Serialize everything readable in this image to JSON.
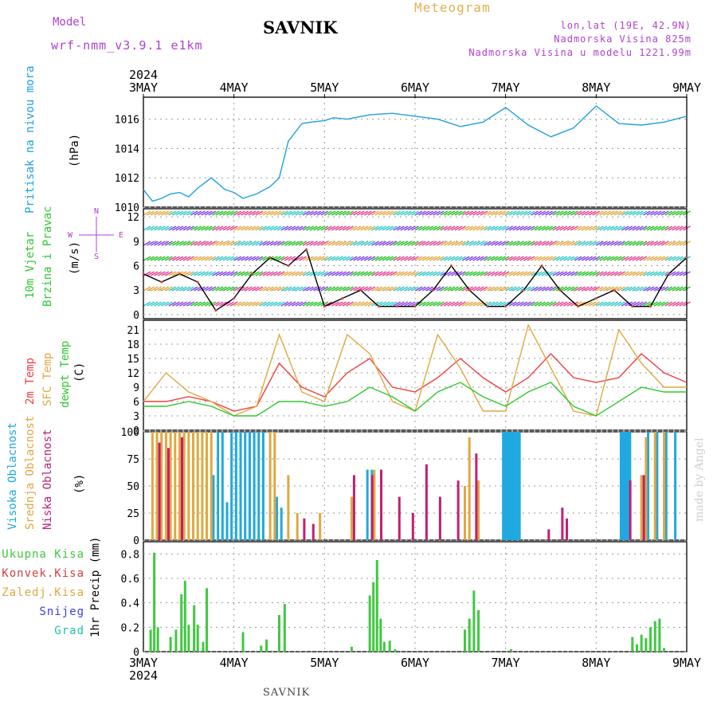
{
  "header": {
    "model_label": "Model",
    "model_value": "wrf-nmm_v3.9.1  e1km",
    "station": "SAVNIK",
    "product": "Meteogram",
    "location_lines": [
      "lon,lat (19E, 42.9N)",
      "Nadmorska Visina 825m",
      "Nadmorska Visina u modelu 1221.99m"
    ],
    "signature": "made by Angel",
    "footer": "SAVNIK"
  },
  "colors": {
    "pressure": "#1ea0e0",
    "temp2m": "#f04040",
    "sfc_temp": "#e0a840",
    "dewpoint": "#30c830",
    "high_cloud": "#20a8e0",
    "mid_cloud": "#e0a840",
    "low_cloud": "#c02070",
    "total_precip": "#40c840",
    "convective": "#d04040",
    "snow": "#4040e0",
    "hail": "#20c0b0",
    "label_purple": "#b040d0"
  },
  "time_axis": {
    "year_label": "2024",
    "days": [
      "3MAY",
      "4MAY",
      "5MAY",
      "6MAY",
      "7MAY",
      "8MAY",
      "9MAY"
    ]
  },
  "chart_data": [
    {
      "type": "line",
      "id": "pressure",
      "ylabel_lines": [
        "Pritisak na nivou mora",
        "(hPa)"
      ],
      "ylim": [
        1010,
        1017.5
      ],
      "yticks": [
        1010,
        1012,
        1014,
        1016
      ],
      "grid": true,
      "series": [
        {
          "name": "Pritisak na nivou mora",
          "x_days": [
            0,
            0.1,
            0.2,
            0.3,
            0.4,
            0.5,
            0.6,
            0.75,
            0.9,
            1.0,
            1.1,
            1.25,
            1.4,
            1.5,
            1.6,
            1.75,
            1.85,
            2.0,
            2.1,
            2.25,
            2.5,
            2.75,
            3.0,
            3.25,
            3.5,
            3.75,
            4.0,
            4.25,
            4.5,
            4.75,
            5.0,
            5.25,
            5.5,
            5.75,
            6.0
          ],
          "values": [
            1011.2,
            1010.4,
            1010.6,
            1010.9,
            1011.0,
            1010.7,
            1011.3,
            1012.0,
            1011.2,
            1011.0,
            1010.6,
            1010.9,
            1011.4,
            1012.0,
            1014.5,
            1015.7,
            1015.8,
            1015.9,
            1016.1,
            1016.0,
            1016.3,
            1016.4,
            1016.2,
            1016.0,
            1015.5,
            1015.8,
            1016.8,
            1015.6,
            1014.8,
            1015.4,
            1016.9,
            1015.7,
            1015.6,
            1015.8,
            1016.2
          ]
        }
      ]
    },
    {
      "type": "line",
      "id": "wind",
      "ylabel_lines": [
        "10m Vjetar",
        "Brzina i Pravac",
        "(m/s)"
      ],
      "compass": [
        "N",
        "E",
        "S",
        "W"
      ],
      "ylim": [
        -0.5,
        13
      ],
      "yticks": [
        0,
        3,
        6,
        9,
        12
      ],
      "grid": true,
      "series": [
        {
          "name": "10m Vjetar",
          "x_days": [
            0,
            0.2,
            0.4,
            0.6,
            0.8,
            1.0,
            1.2,
            1.4,
            1.6,
            1.8,
            2.0,
            2.2,
            2.4,
            2.6,
            2.8,
            3.0,
            3.2,
            3.4,
            3.6,
            3.8,
            4.0,
            4.2,
            4.4,
            4.6,
            4.8,
            5.0,
            5.2,
            5.4,
            5.6,
            5.8,
            6.0
          ],
          "values": [
            5,
            4,
            5,
            4,
            0.5,
            2,
            5,
            7,
            6,
            8,
            1,
            2,
            3,
            1,
            1,
            1,
            3,
            6,
            3,
            1,
            1,
            3,
            6,
            3,
            1,
            2,
            3,
            1,
            1,
            5,
            7
          ]
        }
      ]
    },
    {
      "type": "line",
      "id": "temperature",
      "ylabel_lines": [
        "2m Temp",
        "SFC Temp",
        "dewpt Temp",
        "(C)"
      ],
      "ylim": [
        0,
        23
      ],
      "yticks": [
        0,
        3,
        6,
        9,
        12,
        15,
        18,
        21
      ],
      "grid": true,
      "series": [
        {
          "name": "2m Temp",
          "x_days": [
            0,
            0.25,
            0.5,
            0.75,
            1.0,
            1.25,
            1.5,
            1.75,
            2.0,
            2.25,
            2.5,
            2.75,
            3.0,
            3.25,
            3.5,
            3.75,
            4.0,
            4.25,
            4.5,
            4.75,
            5.0,
            5.25,
            5.5,
            5.75,
            6.0
          ],
          "values": [
            6,
            6,
            7,
            6,
            4,
            5,
            14,
            9,
            7,
            12,
            15,
            9,
            8,
            11,
            15,
            11,
            8,
            11,
            16,
            11,
            10,
            11,
            16,
            12,
            10
          ]
        },
        {
          "name": "SFC Temp",
          "x_days": [
            0,
            0.25,
            0.5,
            0.75,
            1.0,
            1.25,
            1.5,
            1.75,
            2.0,
            2.25,
            2.5,
            2.75,
            3.0,
            3.25,
            3.5,
            3.75,
            4.0,
            4.25,
            4.5,
            4.75,
            5.0,
            5.25,
            5.5,
            5.75,
            6.0
          ],
          "values": [
            6,
            12,
            8,
            6,
            3,
            5,
            20,
            8,
            6,
            20,
            16,
            6,
            4,
            20,
            13,
            4,
            4,
            22,
            13,
            4,
            3,
            21,
            14,
            9,
            9
          ]
        },
        {
          "name": "dewpt Temp",
          "x_days": [
            0,
            0.25,
            0.5,
            0.75,
            1.0,
            1.25,
            1.5,
            1.75,
            2.0,
            2.25,
            2.5,
            2.75,
            3.0,
            3.25,
            3.5,
            3.75,
            4.0,
            4.25,
            4.5,
            4.75,
            5.0,
            5.25,
            5.5,
            5.75,
            6.0
          ],
          "values": [
            5,
            5,
            6,
            5,
            3,
            3,
            6,
            6,
            5,
            6,
            9,
            7,
            4,
            8,
            10,
            7,
            5,
            8,
            10,
            5,
            3,
            6,
            9,
            8,
            8
          ]
        }
      ]
    },
    {
      "type": "bar",
      "id": "clouds",
      "ylabel_lines": [
        "Visoka Oblacnost",
        "Srednja Oblacnost",
        "Niska Oblacnost",
        "(%)"
      ],
      "ylim": [
        0,
        100
      ],
      "yticks": [
        0,
        25,
        50,
        75,
        100
      ],
      "grid": true,
      "series": [
        {
          "name": "Visoka Oblacnost",
          "x_days": [
            0.8,
            0.85,
            0.9,
            0.95,
            1.0,
            1.05,
            1.1,
            1.15,
            1.2,
            1.25,
            1.3,
            1.35,
            1.5,
            1.55,
            2.5,
            2.55,
            4.0,
            4.02,
            4.04,
            4.06,
            4.08,
            4.1,
            4.12,
            4.14,
            4.16,
            4.18,
            5.3,
            5.32,
            5.34,
            5.36,
            5.38,
            5.4,
            5.6,
            5.7,
            5.8,
            5.9
          ],
          "values": [
            60,
            100,
            100,
            35,
            100,
            100,
            100,
            100,
            100,
            100,
            100,
            100,
            40,
            30,
            65,
            65,
            100,
            100,
            100,
            100,
            100,
            100,
            100,
            100,
            100,
            100,
            100,
            100,
            100,
            100,
            100,
            100,
            100,
            100,
            100,
            100
          ]
        },
        {
          "name": "Srednja Oblacnost",
          "x_days": [
            0.1,
            0.15,
            0.2,
            0.25,
            0.3,
            0.35,
            0.4,
            0.45,
            0.5,
            0.55,
            0.6,
            0.65,
            0.7,
            0.75,
            1.4,
            1.45,
            1.6,
            1.7,
            1.95,
            2.3,
            2.55,
            3.55,
            3.6,
            3.7,
            5.5,
            5.55,
            5.65,
            5.75
          ],
          "values": [
            100,
            100,
            100,
            100,
            100,
            100,
            100,
            100,
            100,
            100,
            100,
            100,
            100,
            100,
            100,
            100,
            60,
            25,
            25,
            40,
            65,
            50,
            95,
            55,
            60,
            95,
            100,
            100
          ]
        },
        {
          "name": "Niska Oblacnost",
          "x_days": [
            0.15,
            0.25,
            0.4,
            1.75,
            1.85,
            2.3,
            2.5,
            2.6,
            2.8,
            2.95,
            3.1,
            3.25,
            3.45,
            3.65,
            4.45,
            4.6,
            4.65,
            5.35,
            5.5
          ],
          "values": [
            90,
            85,
            95,
            20,
            15,
            60,
            60,
            65,
            40,
            25,
            70,
            40,
            55,
            80,
            10,
            30,
            20,
            55,
            60
          ]
        }
      ]
    },
    {
      "type": "bar",
      "id": "precip",
      "ylabel_lines": [
        "1hr Precip",
        "(mm)"
      ],
      "legend": [
        "Ukupna Kisa",
        "Konvek.Kisa",
        "Zaledj.Kisa",
        "Snijeg",
        "Grad"
      ],
      "ylim": [
        0,
        0.9
      ],
      "yticks": [
        0,
        0.2,
        0.4,
        0.6,
        0.8
      ],
      "grid": true,
      "series": [
        {
          "name": "Ukupna Kisa",
          "x_days": [
            0.08,
            0.12,
            0.16,
            0.3,
            0.36,
            0.42,
            0.46,
            0.5,
            0.56,
            0.6,
            0.66,
            0.7,
            1.1,
            1.3,
            1.36,
            1.5,
            1.56,
            2.3,
            2.5,
            2.54,
            2.58,
            2.62,
            2.66,
            2.72,
            2.78,
            3.55,
            3.6,
            3.65,
            3.7,
            4.06,
            5.4,
            5.45,
            5.5,
            5.55,
            5.6,
            5.65,
            5.7,
            5.75
          ],
          "values": [
            0.18,
            0.81,
            0.2,
            0.12,
            0.18,
            0.47,
            0.58,
            0.22,
            0.38,
            0.22,
            0.08,
            0.52,
            0.16,
            0.05,
            0.1,
            0.3,
            0.39,
            0.04,
            0.46,
            0.57,
            0.75,
            0.27,
            0.08,
            0.09,
            0.02,
            0.18,
            0.27,
            0.5,
            0.34,
            0.02,
            0.12,
            0.06,
            0.14,
            0.11,
            0.2,
            0.25,
            0.27,
            0.03
          ]
        }
      ]
    }
  ]
}
